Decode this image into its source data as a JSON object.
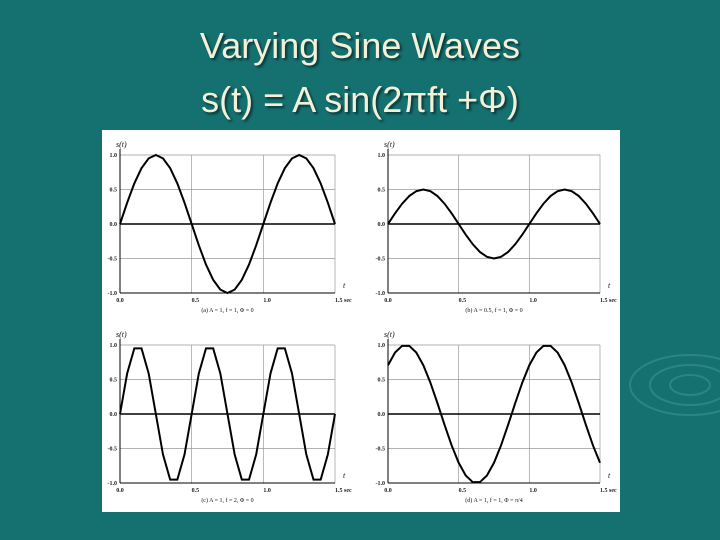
{
  "title": "Varying Sine Waves",
  "subtitle": "s(t) = A sin(2πft +Φ)",
  "chart_data": [
    {
      "type": "line",
      "ylabel": "s(t)",
      "xlabel": "t",
      "caption": "(a) A = 1, f = 1, Φ = 0",
      "color": "#000000",
      "grid": true,
      "x": [
        0,
        0.05,
        0.1,
        0.15,
        0.2,
        0.25,
        0.3,
        0.35,
        0.4,
        0.45,
        0.5,
        0.55,
        0.6,
        0.65,
        0.7,
        0.75,
        0.8,
        0.85,
        0.9,
        0.95,
        1,
        1.05,
        1.1,
        1.15,
        1.2,
        1.25,
        1.3,
        1.35,
        1.4,
        1.45,
        1.5
      ],
      "values": [
        0,
        0.309,
        0.588,
        0.809,
        0.951,
        1,
        0.951,
        0.809,
        0.588,
        0.309,
        0,
        -0.309,
        -0.588,
        -0.809,
        -0.951,
        -1,
        -0.951,
        -0.809,
        -0.588,
        -0.309,
        0,
        0.309,
        0.588,
        0.809,
        0.951,
        1,
        0.951,
        0.809,
        0.588,
        0.309,
        0
      ],
      "xlim": [
        0,
        1.5
      ],
      "ylim": [
        -1,
        1
      ],
      "xticks": [
        {
          "value": 0,
          "label": "0.0"
        },
        0.5,
        {
          "value": 1,
          "label": "1.0"
        },
        {
          "value": 1.5,
          "label": "1.5 sec"
        }
      ],
      "yticks": [
        {
          "value": 1,
          "label": "1.0"
        },
        0.5,
        {
          "value": 0,
          "label": "0.0"
        },
        -0.5,
        {
          "value": -1,
          "label": "-1.0"
        }
      ]
    },
    {
      "type": "line",
      "ylabel": "s(t)",
      "xlabel": "t",
      "caption": "(b) A = 0.5, f = 1, Φ = 0",
      "color": "#000000",
      "grid": true,
      "x": [
        0,
        0.05,
        0.1,
        0.15,
        0.2,
        0.25,
        0.3,
        0.35,
        0.4,
        0.45,
        0.5,
        0.55,
        0.6,
        0.65,
        0.7,
        0.75,
        0.8,
        0.85,
        0.9,
        0.95,
        1,
        1.05,
        1.1,
        1.15,
        1.2,
        1.25,
        1.3,
        1.35,
        1.4,
        1.45,
        1.5
      ],
      "values": [
        0,
        0.155,
        0.294,
        0.405,
        0.476,
        0.5,
        0.476,
        0.405,
        0.294,
        0.155,
        0,
        -0.155,
        -0.294,
        -0.405,
        -0.476,
        -0.5,
        -0.476,
        -0.405,
        -0.294,
        -0.155,
        0,
        0.155,
        0.294,
        0.405,
        0.476,
        0.5,
        0.476,
        0.405,
        0.294,
        0.155,
        0
      ],
      "xlim": [
        0,
        1.5
      ],
      "ylim": [
        -1,
        1
      ],
      "xticks": [
        {
          "value": 0,
          "label": "0.0"
        },
        0.5,
        {
          "value": 1,
          "label": "1.0"
        },
        {
          "value": 1.5,
          "label": "1.5 sec"
        }
      ],
      "yticks": [
        {
          "value": 1,
          "label": "1.0"
        },
        0.5,
        {
          "value": 0,
          "label": "0.0"
        },
        -0.5,
        {
          "value": -1,
          "label": "-1.0"
        }
      ]
    },
    {
      "type": "line",
      "ylabel": "s(t)",
      "xlabel": "t",
      "caption": "(c) A = 1, f = 2, Φ = 0",
      "color": "#000000",
      "grid": true,
      "x": [
        0,
        0.05,
        0.1,
        0.15,
        0.2,
        0.25,
        0.3,
        0.35,
        0.4,
        0.45,
        0.5,
        0.55,
        0.6,
        0.65,
        0.7,
        0.75,
        0.8,
        0.85,
        0.9,
        0.95,
        1,
        1.05,
        1.1,
        1.15,
        1.2,
        1.25,
        1.3,
        1.35,
        1.4,
        1.45,
        1.5
      ],
      "values": [
        0,
        0.588,
        0.951,
        0.951,
        0.588,
        0,
        -0.588,
        -0.951,
        -0.951,
        -0.588,
        0,
        0.588,
        0.951,
        0.951,
        0.588,
        0,
        -0.588,
        -0.951,
        -0.951,
        -0.588,
        0,
        0.588,
        0.951,
        0.951,
        0.588,
        0,
        -0.588,
        -0.951,
        -0.951,
        -0.588,
        0
      ],
      "xlim": [
        0,
        1.5
      ],
      "ylim": [
        -1,
        1
      ],
      "xticks": [
        {
          "value": 0,
          "label": "0.0"
        },
        0.5,
        {
          "value": 1,
          "label": "1.0"
        },
        {
          "value": 1.5,
          "label": "1.5 sec"
        }
      ],
      "yticks": [
        {
          "value": 1,
          "label": "1.0"
        },
        0.5,
        {
          "value": 0,
          "label": "0.0"
        },
        -0.5,
        {
          "value": -1,
          "label": "-1.0"
        }
      ]
    },
    {
      "type": "line",
      "ylabel": "s(t)",
      "xlabel": "t",
      "caption": "(d) A = 1, f = 1, Φ = π/4",
      "color": "#000000",
      "grid": true,
      "x": [
        0,
        0.05,
        0.1,
        0.15,
        0.2,
        0.25,
        0.3,
        0.35,
        0.4,
        0.45,
        0.5,
        0.55,
        0.6,
        0.65,
        0.7,
        0.75,
        0.8,
        0.85,
        0.9,
        0.95,
        1,
        1.05,
        1.1,
        1.15,
        1.2,
        1.25,
        1.3,
        1.35,
        1.4,
        1.45,
        1.5
      ],
      "values": [
        0.707,
        0.891,
        0.988,
        0.988,
        0.891,
        0.707,
        0.454,
        0.156,
        -0.156,
        -0.454,
        -0.707,
        -0.891,
        -0.988,
        -0.988,
        -0.891,
        -0.707,
        -0.454,
        -0.156,
        0.156,
        0.454,
        0.707,
        0.891,
        0.988,
        0.988,
        0.891,
        0.707,
        0.454,
        0.156,
        -0.156,
        -0.454,
        -0.707
      ],
      "xlim": [
        0,
        1.5
      ],
      "ylim": [
        -1,
        1
      ],
      "xticks": [
        {
          "value": 0,
          "label": "0.0"
        },
        0.5,
        {
          "value": 1,
          "label": "1.0"
        },
        {
          "value": 1.5,
          "label": "1.5 sec"
        }
      ],
      "yticks": [
        {
          "value": 1,
          "label": "1.0"
        },
        0.5,
        {
          "value": 0,
          "label": "0.0"
        },
        -0.5,
        {
          "value": -1,
          "label": "-1.0"
        }
      ]
    }
  ]
}
